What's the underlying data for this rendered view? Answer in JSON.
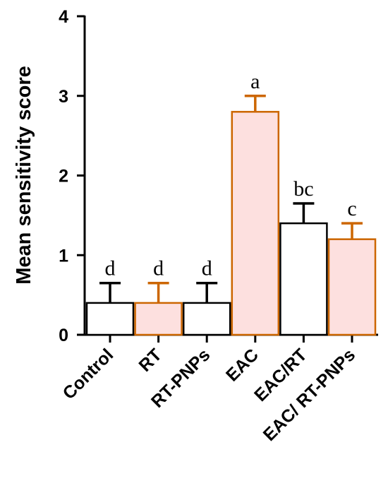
{
  "chart_data": {
    "type": "bar",
    "title": "",
    "xlabel": "",
    "ylabel": "Mean sensitivity score",
    "ylim": [
      0,
      4
    ],
    "yticks": [
      0,
      1,
      2,
      3,
      4
    ],
    "grid": false,
    "legend": "none",
    "categories": [
      "Control",
      "RT",
      "RT-PNPs",
      "EAC",
      "EAC/RT",
      "EAC/ RT-PNPs"
    ],
    "values": [
      0.4,
      0.4,
      0.4,
      2.8,
      1.4,
      1.2
    ],
    "errors": [
      0.25,
      0.25,
      0.25,
      0.2,
      0.25,
      0.2
    ],
    "significance_letters": [
      "d",
      "d",
      "d",
      "a",
      "bc",
      "c"
    ],
    "fill_colors": [
      "#ffffff",
      "#fde0df",
      "#ffffff",
      "#fde0df",
      "#ffffff",
      "#fde0df"
    ],
    "edge_colors": [
      "#000000",
      "#cc6600",
      "#000000",
      "#cc6600",
      "#000000",
      "#cc6600"
    ],
    "axis_color": "#000000"
  }
}
